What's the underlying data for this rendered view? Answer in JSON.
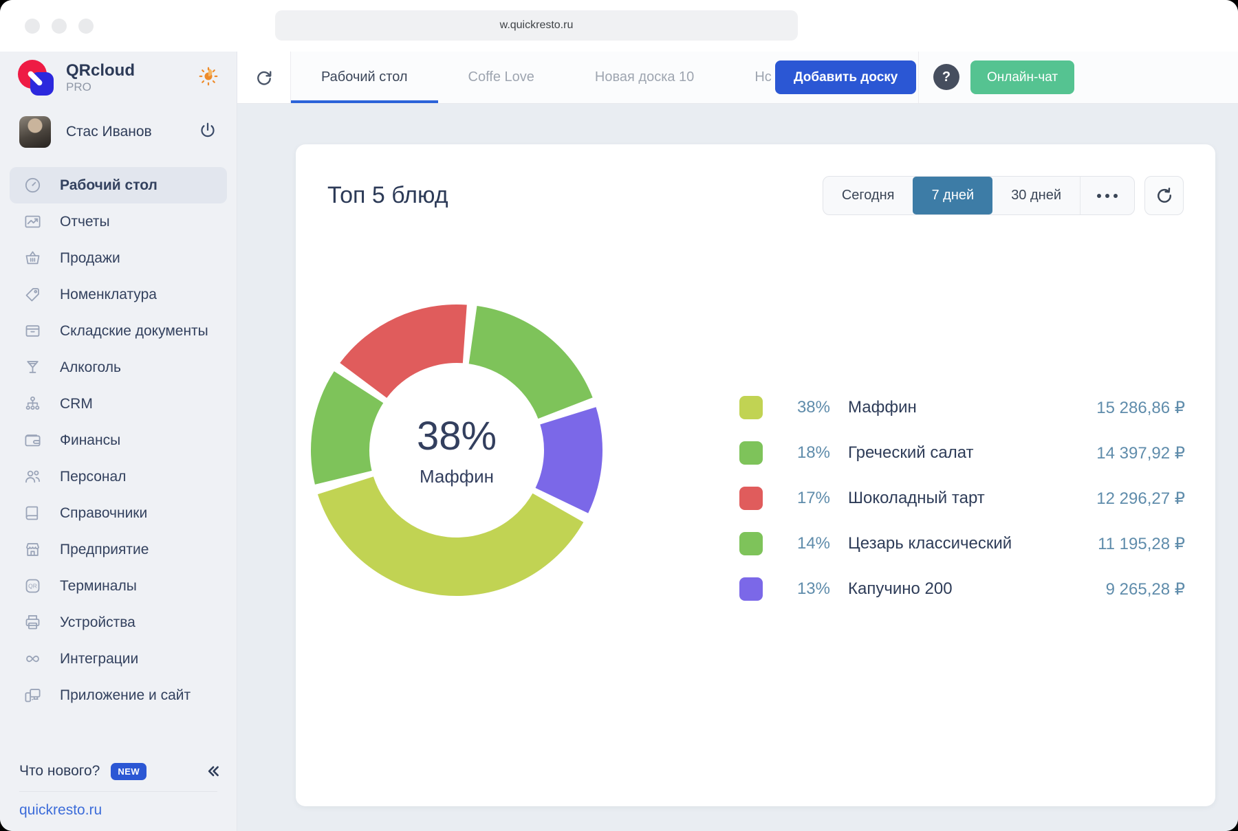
{
  "window": {
    "url": "w.quickresto.ru"
  },
  "sidebar": {
    "logo": {
      "title": "QRcloud",
      "subtitle": "PRO"
    },
    "user": {
      "name": "Стас Иванов"
    },
    "items": [
      {
        "label": "Рабочий стол",
        "icon": "dashboard",
        "active": true
      },
      {
        "label": "Отчеты",
        "icon": "reports",
        "active": false
      },
      {
        "label": "Продажи",
        "icon": "sales",
        "active": false
      },
      {
        "label": "Номенклатура",
        "icon": "nomenclature",
        "active": false
      },
      {
        "label": "Складские документы",
        "icon": "warehouse",
        "active": false
      },
      {
        "label": "Алкоголь",
        "icon": "alcohol",
        "active": false
      },
      {
        "label": "CRM",
        "icon": "crm",
        "active": false
      },
      {
        "label": "Финансы",
        "icon": "finance",
        "active": false
      },
      {
        "label": "Персонал",
        "icon": "staff",
        "active": false
      },
      {
        "label": "Справочники",
        "icon": "directories",
        "active": false
      },
      {
        "label": "Предприятие",
        "icon": "enterprise",
        "active": false
      },
      {
        "label": "Терминалы",
        "icon": "terminals",
        "active": false
      },
      {
        "label": "Устройства",
        "icon": "devices",
        "active": false
      },
      {
        "label": "Интеграции",
        "icon": "integrations",
        "active": false
      },
      {
        "label": "Приложение и сайт",
        "icon": "app-site",
        "active": false
      }
    ],
    "whats_new": {
      "label": "Что нового?",
      "badge": "NEW"
    },
    "footer_link": "quickresto.ru"
  },
  "header": {
    "tabs": [
      {
        "label": "Рабочий стол",
        "active": true
      },
      {
        "label": "Coffe Love",
        "active": false
      },
      {
        "label": "Новая доска 10",
        "active": false
      },
      {
        "label": "Нс",
        "active": false
      }
    ],
    "add_board_label": "Добавить доску",
    "help_label": "?",
    "chat_label": "Онлайн-чат"
  },
  "card": {
    "title": "Топ 5 блюд",
    "filters": {
      "options": [
        "Сегодня",
        "7 дней",
        "30 дней"
      ],
      "selected": "7 дней"
    }
  },
  "chart_data": {
    "type": "pie",
    "subtype": "donut",
    "title": "Топ 5 блюд",
    "period_selected": "7 дней",
    "legend_position": "right",
    "series": [
      {
        "name": "Маффин",
        "percent": 38,
        "value_rub": 15286.86,
        "value_display": "15 286,86 ₽",
        "color": "#c1d353"
      },
      {
        "name": "Греческий салат",
        "percent": 18,
        "value_rub": 14397.92,
        "value_display": "14 397,92 ₽",
        "color": "#7ec35a"
      },
      {
        "name": "Шоколадный тарт",
        "percent": 17,
        "value_rub": 12296.27,
        "value_display": "12 296,27 ₽",
        "color": "#e05c5c"
      },
      {
        "name": "Цезарь классический",
        "percent": 14,
        "value_rub": 11195.28,
        "value_display": "11 195,28 ₽",
        "color": "#7ec35a"
      },
      {
        "name": "Капучино 200",
        "percent": 13,
        "value_rub": 9265.28,
        "value_display": "9 265,28 ₽",
        "color": "#7b68e8"
      }
    ],
    "donut": {
      "order_clockwise_from_top": [
        "Греческий салат",
        "Капучино 200",
        "Маффин",
        "Цезарь классический",
        "Шоколадный тарт"
      ],
      "start_deg": 6,
      "gap_deg": 4,
      "outer_radius": 212,
      "inner_radius": 127
    },
    "center_label": {
      "percent": "38%",
      "name": "Маффин"
    }
  },
  "colors": {
    "accent_blue": "#2b57d4",
    "chat_green": "#55c391",
    "selected_period": "#3d7ca6",
    "tab_underline": "#2b63d9",
    "legend_number": "#5f8cab",
    "text_dark": "#2e3c58",
    "main_bg": "#e9edf2",
    "sidebar_bg": "#eff1f5"
  }
}
